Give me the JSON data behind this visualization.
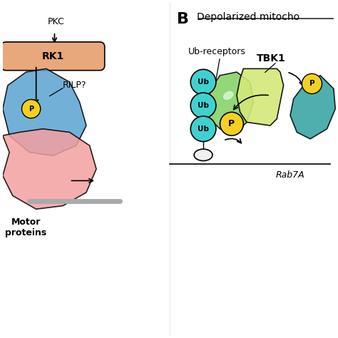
{
  "title": "",
  "background_color": "#ffffff",
  "panel_B_label": "B",
  "panel_B_title": "Depolarized mitocho",
  "panel_B_title_underline": true,
  "left_panel": {
    "PKC_label": "PKC",
    "LRRK1_label": "RK1",
    "LRRK1_color": "#e8a87c",
    "RILP_label": "RILP?",
    "rab_color": "#6baed6",
    "rab_yellow_dot": "#f5d020",
    "motor_color": "#f4a0a0",
    "motor_label": "Motor\nproteins",
    "arrow_color": "#000000"
  },
  "right_panel": {
    "ub_color": "#40d0d0",
    "ub_border": "#000000",
    "ub_label": "Ub",
    "ub_receptors_label": "Ub-receptors",
    "tbk1_label": "TBK1",
    "tbk1_color": "#d4e88a",
    "green_shape_color": "#90d070",
    "p_label": "P",
    "p_color": "#f5d020",
    "rab7a_label": "Rab7A",
    "rab7a_color": "#40c0c0",
    "membrane_color": "#cccccc",
    "oval_color": "#f0f0f0"
  }
}
